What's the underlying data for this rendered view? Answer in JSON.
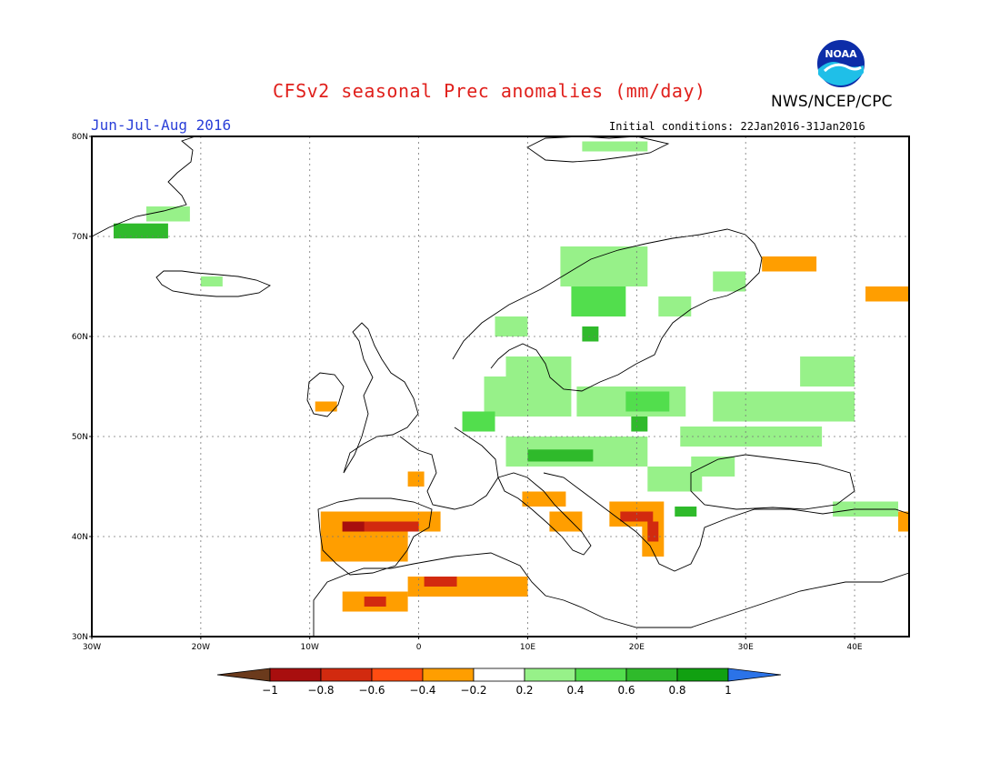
{
  "header": {
    "title": "CFSv2 seasonal Prec anomalies (mm/day)",
    "org": "NWS/NCEP/CPC",
    "logo_text": "NOAA",
    "season": "Jun-Jul-Aug 2016",
    "initial_conditions": "Initial conditions: 22Jan2016-31Jan2016"
  },
  "map": {
    "projection": "equirectangular",
    "lon_range": [
      -30,
      45
    ],
    "lat_range": [
      30,
      80
    ],
    "grid": true,
    "lat_ticks": [
      "30N",
      "40N",
      "50N",
      "60N",
      "70N",
      "80N"
    ],
    "lon_ticks": [
      "30W",
      "20W",
      "10W",
      "0",
      "10E",
      "20E",
      "30E",
      "40E"
    ]
  },
  "legend": {
    "labels": [
      "-1",
      "-0.8",
      "-0.6",
      "-0.4",
      "-0.2",
      "0.2",
      "0.4",
      "0.6",
      "0.8",
      "1"
    ],
    "colors": [
      "#6b3a1c",
      "#a80e0e",
      "#d22a0f",
      "#ff4c12",
      "#ff9e00",
      "#ffffff",
      "#97f189",
      "#52de4d",
      "#2fba2b",
      "#11a011",
      "#2b73e8"
    ]
  },
  "anomaly_regions": [
    {
      "name": "Greenland east coast",
      "lon": -28,
      "lat": 69.8,
      "w": 5,
      "h": 1.5,
      "level": "0.6"
    },
    {
      "name": "Greenland interior",
      "lon": -25,
      "lat": 71.5,
      "w": 4,
      "h": 1.5,
      "level": "0.2"
    },
    {
      "name": "Iceland",
      "lon": -20,
      "lat": 65,
      "w": 2,
      "h": 1,
      "level": "0.2"
    },
    {
      "name": "Svalbard",
      "lon": 15,
      "lat": 78.5,
      "w": 6,
      "h": 1,
      "level": "0.2"
    },
    {
      "name": "Norway coast",
      "lon": 7,
      "lat": 60,
      "w": 3,
      "h": 2,
      "level": "0.2"
    },
    {
      "name": "Scandinavia",
      "lon": 13,
      "lat": 65,
      "w": 8,
      "h": 4,
      "level": "0.2"
    },
    {
      "name": "Central Sweden",
      "lon": 14,
      "lat": 62,
      "w": 5,
      "h": 3,
      "level": "0.4"
    },
    {
      "name": "Sweden core",
      "lon": 15,
      "lat": 59.5,
      "w": 1.5,
      "h": 1.5,
      "level": "0.6"
    },
    {
      "name": "Finland",
      "lon": 22,
      "lat": 62,
      "w": 3,
      "h": 2,
      "level": "0.2"
    },
    {
      "name": "Russia NW",
      "lon": 27,
      "lat": 64.5,
      "w": 3,
      "h": 2,
      "level": "0.2"
    },
    {
      "name": "Denmark",
      "lon": 8,
      "lat": 56,
      "w": 6,
      "h": 2,
      "level": "0.2"
    },
    {
      "name": "Germany",
      "lon": 6,
      "lat": 52,
      "w": 8,
      "h": 4,
      "level": "0.2"
    },
    {
      "name": "Benelux",
      "lon": 4,
      "lat": 50.5,
      "w": 3,
      "h": 2,
      "level": "0.4"
    },
    {
      "name": "Poland",
      "lon": 14.5,
      "lat": 52,
      "w": 10,
      "h": 3,
      "level": "0.2"
    },
    {
      "name": "Poland core",
      "lon": 19,
      "lat": 52.5,
      "w": 4,
      "h": 2,
      "level": "0.4"
    },
    {
      "name": "Poland deep",
      "lon": 19.5,
      "lat": 50.5,
      "w": 1.5,
      "h": 1.5,
      "level": "0.6"
    },
    {
      "name": "Alps",
      "lon": 8,
      "lat": 47,
      "w": 13,
      "h": 3,
      "level": "0.2"
    },
    {
      "name": "Austria",
      "lon": 10,
      "lat": 47.5,
      "w": 6,
      "h": 1.2,
      "level": "0.6"
    },
    {
      "name": "Western Russia",
      "lon": 27,
      "lat": 51.5,
      "w": 13,
      "h": 3,
      "level": "0.2"
    },
    {
      "name": "Ukraine",
      "lon": 24,
      "lat": 49,
      "w": 13,
      "h": 2,
      "level": "0.2"
    },
    {
      "name": "Moscow region",
      "lon": 35,
      "lat": 55,
      "w": 5,
      "h": 3,
      "level": "0.2"
    },
    {
      "name": "Ukraine south",
      "lon": 21,
      "lat": 44.5,
      "w": 5,
      "h": 2.5,
      "level": "0.2"
    },
    {
      "name": "Romania",
      "lon": 25,
      "lat": 46,
      "w": 4,
      "h": 2,
      "level": "0.2"
    },
    {
      "name": "Bulgaria",
      "lon": 23.5,
      "lat": 42,
      "w": 2,
      "h": 1,
      "level": "0.6"
    },
    {
      "name": "Caucasus",
      "lon": 38,
      "lat": 42,
      "w": 6,
      "h": 1.5,
      "level": "0.2"
    },
    {
      "name": "Kola peninsula",
      "lon": 31.5,
      "lat": 66.5,
      "w": 5,
      "h": 1.5,
      "level": "-0.4"
    },
    {
      "name": "Kara sea coast",
      "lon": 41,
      "lat": 63.5,
      "w": 4,
      "h": 1.5,
      "level": "-0.4"
    },
    {
      "name": "Ireland",
      "lon": -9.5,
      "lat": 52.5,
      "w": 2,
      "h": 1,
      "level": "-0.4"
    },
    {
      "name": "France west",
      "lon": -1,
      "lat": 45,
      "w": 1.5,
      "h": 1.5,
      "level": "-0.4"
    },
    {
      "name": "Spain north",
      "lon": -9,
      "lat": 40.5,
      "w": 11,
      "h": 2,
      "level": "-0.4"
    },
    {
      "name": "Spain core",
      "lon": -7,
      "lat": 40.5,
      "w": 7,
      "h": 1,
      "level": "-0.6"
    },
    {
      "name": "Spain dark",
      "lon": -7,
      "lat": 40.5,
      "w": 2,
      "h": 1,
      "level": "-0.8"
    },
    {
      "name": "Spain south",
      "lon": -9,
      "lat": 37.5,
      "w": 8,
      "h": 3,
      "level": "-0.4"
    },
    {
      "name": "Italy central",
      "lon": 9.5,
      "lat": 43,
      "w": 4,
      "h": 1.5,
      "level": "-0.4"
    },
    {
      "name": "Italy south",
      "lon": 12,
      "lat": 40.5,
      "w": 3,
      "h": 2,
      "level": "-0.4"
    },
    {
      "name": "Balkans",
      "lon": 17.5,
      "lat": 41,
      "w": 5,
      "h": 2.5,
      "level": "-0.4"
    },
    {
      "name": "Balkans core",
      "lon": 18.5,
      "lat": 41.5,
      "w": 3,
      "h": 1,
      "level": "-0.6"
    },
    {
      "name": "Greece",
      "lon": 20.5,
      "lat": 38,
      "w": 2,
      "h": 3,
      "level": "-0.4"
    },
    {
      "name": "Greece core",
      "lon": 21,
      "lat": 39.5,
      "w": 1,
      "h": 2,
      "level": "-0.6"
    },
    {
      "name": "Morocco",
      "lon": -7,
      "lat": 32.5,
      "w": 6,
      "h": 2,
      "level": "-0.4"
    },
    {
      "name": "Morocco core",
      "lon": -5,
      "lat": 33,
      "w": 2,
      "h": 1,
      "level": "-0.6"
    },
    {
      "name": "Algeria",
      "lon": -1,
      "lat": 34,
      "w": 11,
      "h": 2,
      "level": "-0.4"
    },
    {
      "name": "Algeria core",
      "lon": 0.5,
      "lat": 35,
      "w": 3,
      "h": 1,
      "level": "-0.6"
    },
    {
      "name": "Russia east edge",
      "lon": 44,
      "lat": 40.5,
      "w": 1,
      "h": 2,
      "level": "-0.4"
    }
  ]
}
